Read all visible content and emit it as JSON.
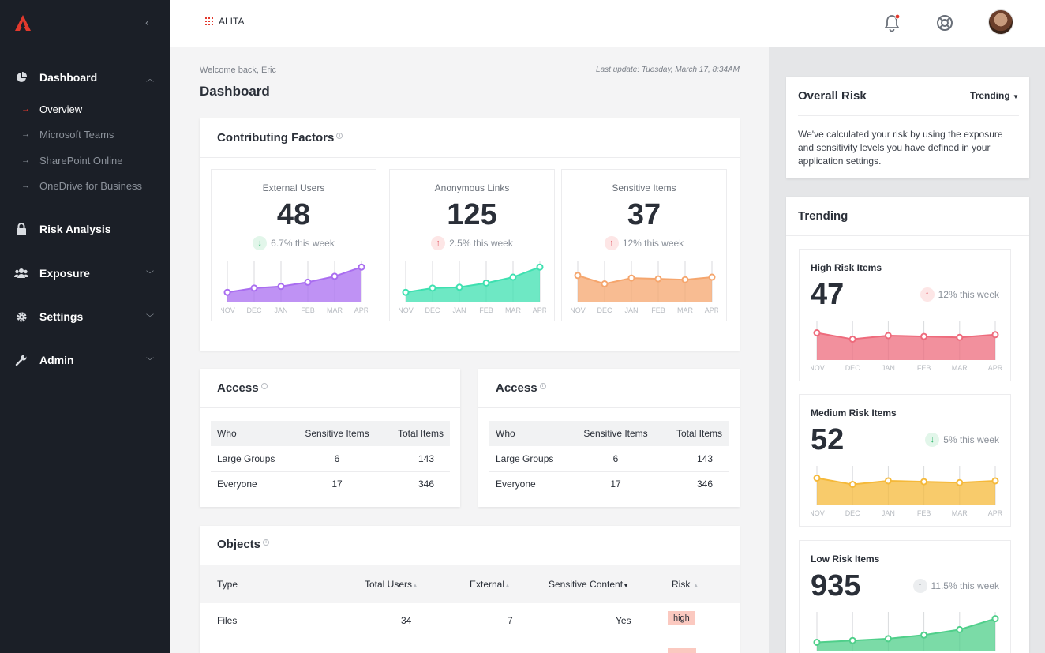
{
  "sidebar": {
    "nav": [
      {
        "label": "Dashboard",
        "icon": "pie-chart-icon",
        "expanded": true
      },
      {
        "label": "Risk Analysis",
        "icon": "lock-icon"
      },
      {
        "label": "Exposure",
        "icon": "users-icon"
      },
      {
        "label": "Settings",
        "icon": "gear-icon"
      },
      {
        "label": "Admin",
        "icon": "wrench-icon"
      }
    ],
    "dashboard_sub": [
      "Overview",
      "Microsoft Teams",
      "SharePoint Online",
      "OneDrive for Business"
    ],
    "active_sub": "Overview"
  },
  "topbar": {
    "brand": "ALITA"
  },
  "main": {
    "welcome": "Welcome back, Eric",
    "last_update": "Last update: Tuesday, March 17, 8:34AM",
    "title": "Dashboard"
  },
  "contributing": {
    "title": "Contributing Factors",
    "metrics": [
      {
        "label": "External Users",
        "value": "48",
        "change": "6.7% this week",
        "direction": "down",
        "color": "#a96df0",
        "x": [
          "NOV",
          "DEC",
          "JAN",
          "FEB",
          "MAR",
          "APR"
        ],
        "y": [
          22,
          27,
          29,
          34,
          41,
          52
        ]
      },
      {
        "label": "Anonymous Links",
        "value": "125",
        "change": "2.5% this week",
        "direction": "up",
        "color": "#3ee0b0",
        "x": [
          "NOV",
          "DEC",
          "JAN",
          "FEB",
          "MAR",
          "APR"
        ],
        "y": [
          22,
          27,
          28,
          33,
          40,
          52
        ]
      },
      {
        "label": "Sensitive Items",
        "value": "37",
        "change": "12% this week",
        "direction": "up",
        "color": "#f5a66e",
        "x": [
          "NOV",
          "DEC",
          "JAN",
          "FEB",
          "MAR",
          "APR"
        ],
        "y": [
          42,
          32,
          39,
          38,
          37,
          40
        ]
      }
    ]
  },
  "access_tables": [
    {
      "title": "Access",
      "headers": [
        "Who",
        "Sensitive Items",
        "Total Items"
      ],
      "rows": [
        [
          "Large Groups",
          "6",
          "143"
        ],
        [
          "Everyone",
          "17",
          "346"
        ]
      ]
    },
    {
      "title": "Access",
      "headers": [
        "Who",
        "Sensitive Items",
        "Total Items"
      ],
      "rows": [
        [
          "Large Groups",
          "6",
          "143"
        ],
        [
          "Everyone",
          "17",
          "346"
        ]
      ]
    }
  ],
  "objects": {
    "title": "Objects",
    "headers": [
      "Type",
      "Total Users",
      "External",
      "Sensitive Content",
      "Risk"
    ],
    "rows": [
      [
        "Files",
        "34",
        "7",
        "Yes",
        "high"
      ]
    ]
  },
  "overall_risk": {
    "title": "Overall Risk",
    "dropdown": "Trending",
    "text": "We've calculated your risk by using the exposure and sensitivity levels you have defined in your application settings."
  },
  "trending": {
    "title": "Trending",
    "cards": [
      {
        "label": "High Risk Items",
        "value": "47",
        "change": "12% this week",
        "direction": "up",
        "color": "#ee6b7c",
        "x": [
          "NOV",
          "DEC",
          "JAN",
          "FEB",
          "MAR",
          "APR"
        ],
        "y": [
          40,
          33,
          37,
          36,
          35,
          38
        ]
      },
      {
        "label": "Medium Risk Items",
        "value": "52",
        "change": "5% this week",
        "direction": "down",
        "color": "#f5b93a",
        "x": [
          "NOV",
          "DEC",
          "JAN",
          "FEB",
          "MAR",
          "APR"
        ],
        "y": [
          40,
          33,
          37,
          36,
          35,
          37
        ]
      },
      {
        "label": "Low Risk Items",
        "value": "935",
        "change": "11.5% this week",
        "direction": "neutral",
        "color": "#4fcf8a",
        "x": [
          "NOV",
          "DEC",
          "JAN",
          "FEB",
          "MAR",
          "APR"
        ],
        "y": [
          20,
          22,
          24,
          28,
          34,
          46
        ]
      }
    ]
  }
}
